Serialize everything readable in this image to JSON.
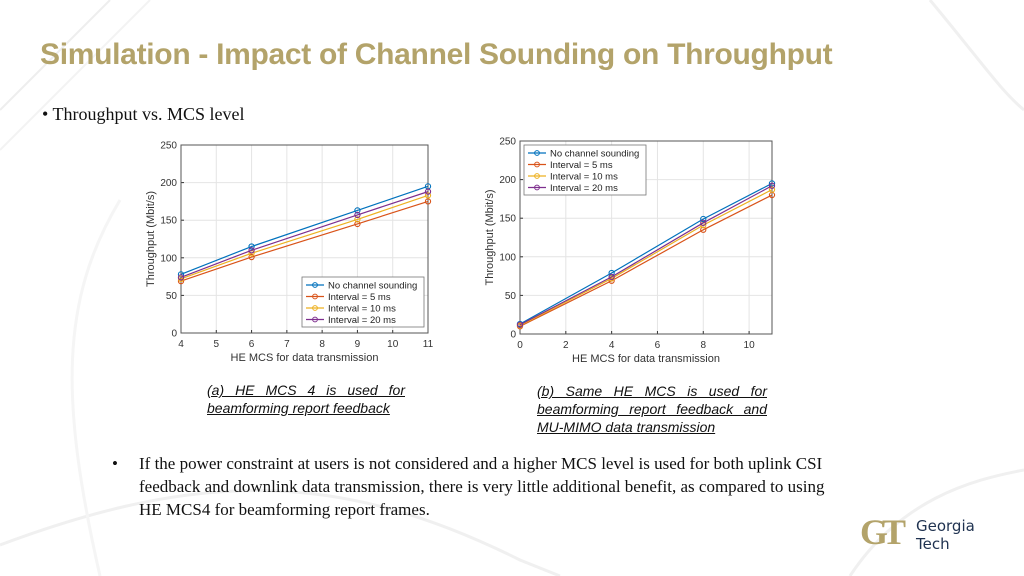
{
  "slide": {
    "title": "Simulation - Impact of Channel Sounding on Throughput",
    "bullet_1": "Throughput vs. MCS level",
    "bullet_2": "If the power constraint at users is not considered and a higher MCS level is used for both uplink CSI feedback and downlink data transmission, there is very little additional benefit, as compared to using HE MCS4 for beamforming report frames.",
    "bullet_marker": "•",
    "caption_a": "(a) HE MCS 4 is used for beamforming report feedback",
    "caption_b": "(b) Same HE MCS is used for beamforming report feedback and MU-MIMO data transmission",
    "logo": {
      "line1": "Georgia",
      "line2": "Tech",
      "mark": "GT"
    },
    "accent_color": "#b3a36a"
  },
  "chart_data": [
    {
      "type": "line",
      "xlabel": "HE MCS for data transmission",
      "ylabel": "Throughput (Mbit/s)",
      "xlim": [
        4,
        11
      ],
      "ylim": [
        0,
        250
      ],
      "xticks": [
        4,
        5,
        6,
        7,
        8,
        9,
        10,
        11
      ],
      "yticks": [
        0,
        50,
        100,
        150,
        200,
        250
      ],
      "grid": true,
      "legend_position": "bottom-right",
      "x": [
        4,
        6,
        9,
        11
      ],
      "series": [
        {
          "name": "No channel sounding",
          "color": "#0072bd",
          "values": [
            78,
            115,
            163,
            195
          ]
        },
        {
          "name": "Interval = 5 ms",
          "color": "#d95319",
          "values": [
            69,
            101,
            145,
            175
          ]
        },
        {
          "name": "Interval = 10 ms",
          "color": "#edb120",
          "values": [
            72,
            106,
            151,
            183
          ]
        },
        {
          "name": "Interval = 20 ms",
          "color": "#7e2f8e",
          "values": [
            74,
            110,
            157,
            188
          ]
        }
      ]
    },
    {
      "type": "line",
      "xlabel": "HE MCS for data transmission",
      "ylabel": "Throughput (Mbit/s)",
      "xlim": [
        0,
        11
      ],
      "ylim": [
        0,
        250
      ],
      "xticks": [
        0,
        2,
        4,
        6,
        8,
        10
      ],
      "yticks": [
        0,
        50,
        100,
        150,
        200,
        250
      ],
      "grid": true,
      "legend_position": "top-left",
      "x": [
        0,
        4,
        8,
        11
      ],
      "series": [
        {
          "name": "No channel sounding",
          "color": "#0072bd",
          "values": [
            13,
            79,
            149,
            195
          ]
        },
        {
          "name": "Interval = 5 ms",
          "color": "#d95319",
          "values": [
            10,
            69,
            135,
            180
          ]
        },
        {
          "name": "Interval = 10 ms",
          "color": "#edb120",
          "values": [
            11,
            72,
            141,
            187
          ]
        },
        {
          "name": "Interval = 20 ms",
          "color": "#7e2f8e",
          "values": [
            12,
            74,
            144,
            192
          ]
        }
      ]
    }
  ]
}
